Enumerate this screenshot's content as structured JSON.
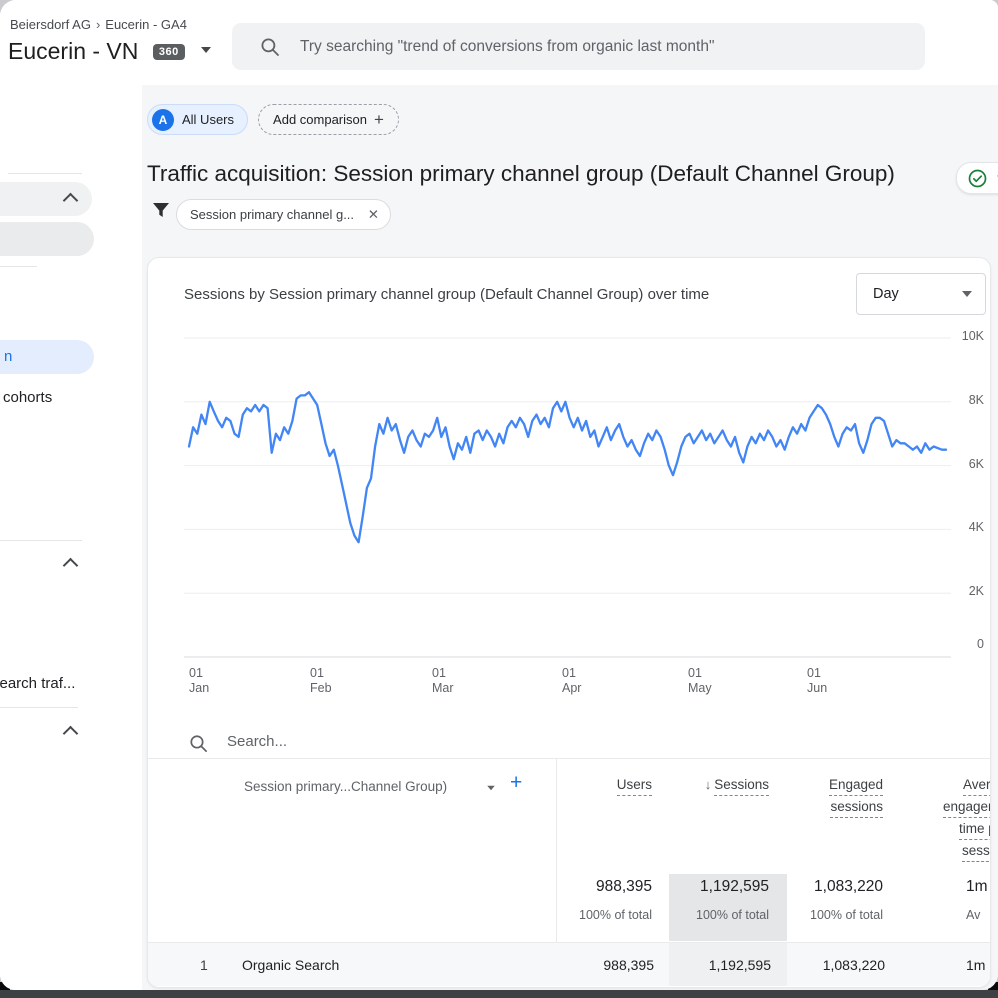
{
  "header": {
    "breadcrumb_account": "Beiersdorf AG",
    "breadcrumb_property": "Eucerin - GA4",
    "property_name": "Eucerin - VN",
    "badge_360": "360",
    "search_placeholder": "Try searching \"trend of conversions from organic last month\""
  },
  "sidebar": {
    "selected_item": "n",
    "item_cohorts": "cohorts",
    "item_search_traffic": "search traf..."
  },
  "comparison": {
    "all_users": {
      "avatar": "A",
      "label": "All Users"
    },
    "add_label": "Add comparison",
    "add_plus": "+"
  },
  "page": {
    "title": "Traffic acquisition: Session primary channel group (Default Channel Group)",
    "filter_chip": "Session primary channel g...",
    "filter_close": "✕"
  },
  "chart_card": {
    "title": "Sessions by Session primary channel group (Default Channel Group) over time",
    "granularity": "Day"
  },
  "chart_data": {
    "type": "line",
    "title": "Sessions by Session primary channel group (Default Channel Group) over time",
    "ylabel": "Sessions",
    "color": "#4285f4",
    "grid": true,
    "ylim": [
      0,
      10000
    ],
    "y_ticks": [
      "10K",
      "8K",
      "6K",
      "4K",
      "2K",
      "0"
    ],
    "y_tick_values": [
      10000,
      8000,
      6000,
      4000,
      2000,
      0
    ],
    "x_ticks": [
      "01 Jan",
      "01 Feb",
      "01 Mar",
      "01 Apr",
      "01 May",
      "01 Jun"
    ],
    "series": [
      {
        "name": "Sessions",
        "cadence": "daily",
        "values": [
          6600,
          7200,
          7000,
          7600,
          7300,
          8000,
          7700,
          7400,
          7200,
          7500,
          7400,
          7000,
          6900,
          7600,
          7800,
          7700,
          7900,
          7700,
          7900,
          7800,
          6400,
          7000,
          6800,
          7200,
          7000,
          7400,
          8100,
          8200,
          8200,
          8300,
          8100,
          7900,
          7300,
          6700,
          6300,
          6500,
          6000,
          5400,
          4800,
          4200,
          3800,
          3600,
          4400,
          5300,
          5600,
          6600,
          7300,
          7000,
          7500,
          7100,
          7300,
          6800,
          6400,
          6900,
          7100,
          6800,
          6600,
          7000,
          6900,
          7100,
          7500,
          6900,
          7200,
          6600,
          6200,
          6700,
          6500,
          6900,
          6400,
          7000,
          7100,
          6800,
          7100,
          6900,
          6600,
          7000,
          6700,
          7200,
          7400,
          7200,
          7500,
          7300,
          6900,
          7400,
          7600,
          7300,
          7500,
          7200,
          7800,
          8000,
          7700,
          8000,
          7500,
          7200,
          7500,
          7100,
          7400,
          6900,
          7100,
          6600,
          6900,
          7200,
          6800,
          7100,
          7300,
          6900,
          6600,
          6800,
          6500,
          6300,
          6700,
          7000,
          6800,
          7100,
          6900,
          6500,
          6000,
          5700,
          6100,
          6600,
          6900,
          7000,
          6700,
          6900,
          7100,
          6800,
          7000,
          6700,
          6900,
          7100,
          6800,
          6600,
          6900,
          6400,
          6100,
          6600,
          6900,
          6700,
          7000,
          6800,
          7100,
          6900,
          6600,
          6800,
          6500,
          6900,
          7200,
          7000,
          7300,
          7100,
          7500,
          7700,
          7900,
          7800,
          7600,
          7300,
          6900,
          6600,
          7000,
          7200,
          7100,
          7300,
          6700,
          6400,
          6800,
          7300,
          7500,
          7500,
          7400,
          7000,
          6600,
          6800,
          6700,
          6700,
          6600,
          6500,
          6600,
          6400,
          6700,
          6500,
          6600,
          6550,
          6500,
          6500
        ]
      }
    ]
  },
  "table": {
    "search_placeholder": "Search...",
    "dimension_header": "Session primary...Channel Group)",
    "add_column_plus": "+",
    "columns": [
      {
        "label": "Users",
        "lines": [
          "Users"
        ]
      },
      {
        "label": "Sessions",
        "sorted": true,
        "sort_icon": "↓",
        "lines": [
          "Sessions"
        ]
      },
      {
        "label": "Engaged sessions",
        "lines": [
          "Engaged",
          "sessions"
        ]
      },
      {
        "label": "Average engagement time per session",
        "lines": [
          "Average",
          "engagement",
          "time per",
          "session"
        ]
      }
    ],
    "totals": {
      "users": {
        "value": "988,395",
        "share": "100% of total"
      },
      "sessions": {
        "value": "1,192,595",
        "share": "100% of total"
      },
      "engaged": {
        "value": "1,083,220",
        "share": "100% of total"
      },
      "avg": {
        "value": "1m",
        "share": "Av"
      }
    },
    "rows": [
      {
        "rank": "1",
        "channel": "Organic Search",
        "users": "988,395",
        "sessions": "1,192,595",
        "engaged": "1,083,220",
        "avg": "1m"
      }
    ]
  },
  "colors": {
    "accent_blue": "#1a73e8",
    "line_blue": "#4285f4",
    "check_green": "#188038",
    "sorted_column_bg": "#e5e6e7"
  }
}
